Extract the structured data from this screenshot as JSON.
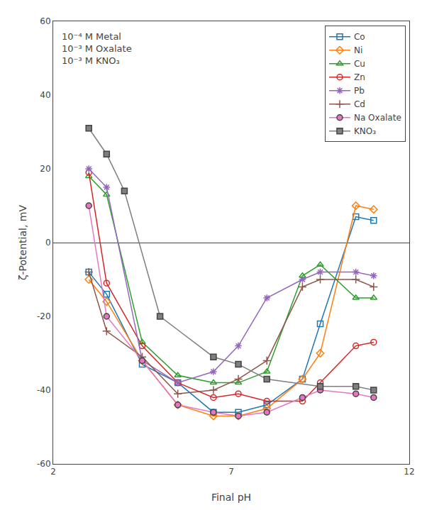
{
  "chart_data": {
    "type": "line",
    "xlabel": "Final pH",
    "ylabel": "ζ-Potential, mV",
    "xlim": [
      2,
      12
    ],
    "ylim": [
      -60,
      60
    ],
    "xticks": [
      2,
      7,
      12
    ],
    "yticks": [
      -60,
      -40,
      -20,
      0,
      20,
      40,
      60
    ],
    "grid": false,
    "legend": "upper right",
    "annotations": [
      "10⁻⁴ M Metal",
      "10⁻³ M Oxalate",
      "10⁻³ M KNO₃"
    ],
    "series": [
      {
        "name": "Co",
        "marker": "square-open",
        "x": [
          3.0,
          3.5,
          4.5,
          5.5,
          6.5,
          7.2,
          8.0,
          9.0,
          9.5,
          10.5,
          11.0
        ],
        "values": [
          -8,
          -14,
          -33,
          -38,
          -46,
          -46,
          -44,
          -37,
          -22,
          7,
          6
        ]
      },
      {
        "name": "Ni",
        "marker": "diamond-open",
        "x": [
          3.0,
          3.5,
          4.5,
          5.5,
          6.5,
          7.2,
          8.0,
          9.0,
          9.5,
          10.5,
          11.0
        ],
        "values": [
          -10,
          -16,
          -32,
          -44,
          -47,
          -47,
          -45,
          -37,
          -30,
          10,
          9
        ]
      },
      {
        "name": "Cu",
        "marker": "triangle-up-open",
        "x": [
          3.0,
          3.5,
          4.5,
          5.5,
          6.5,
          7.2,
          8.0,
          9.0,
          9.5,
          10.5,
          11.0
        ],
        "values": [
          18,
          13,
          -27,
          -36,
          -38,
          -38,
          -35,
          -9,
          -6,
          -15,
          -15
        ]
      },
      {
        "name": "Zn",
        "marker": "circle-open",
        "x": [
          3.0,
          3.5,
          4.5,
          5.5,
          6.5,
          7.2,
          8.0,
          9.0,
          9.5,
          10.5,
          11.0
        ],
        "values": [
          19,
          -11,
          -28,
          -38,
          -42,
          -41,
          -43,
          -43,
          -38,
          -28,
          -27
        ]
      },
      {
        "name": "Pb",
        "marker": "asterisk-open",
        "x": [
          3.0,
          3.5,
          4.5,
          5.5,
          6.5,
          7.2,
          8.0,
          9.0,
          9.5,
          10.5,
          11.0
        ],
        "values": [
          20,
          15,
          -32,
          -38,
          -35,
          -28,
          -15,
          -10,
          -8,
          -8,
          -9
        ]
      },
      {
        "name": "Cd",
        "marker": "cross-thin-open",
        "x": [
          3.0,
          3.5,
          4.5,
          5.5,
          6.5,
          7.2,
          8.0,
          9.0,
          9.5,
          10.5,
          11.0
        ],
        "values": [
          -8,
          -24,
          -31,
          -41,
          -40,
          -37,
          -32,
          -12,
          -10,
          -10,
          -12
        ]
      },
      {
        "name": "Na Oxalate",
        "marker": "circle",
        "x": [
          3.0,
          3.5,
          4.5,
          5.5,
          6.5,
          7.2,
          8.0,
          9.0,
          9.5,
          10.5,
          11.0
        ],
        "values": [
          10,
          -20,
          -32,
          -44,
          -46,
          -47,
          -46,
          -42,
          -40,
          -41,
          -42
        ]
      },
      {
        "name": "KNO₃",
        "marker": "square",
        "x": [
          3.0,
          3.5,
          4.0,
          5.0,
          6.5,
          7.2,
          8.0,
          9.5,
          10.5,
          11.0
        ],
        "values": [
          31,
          24,
          14,
          -20,
          -31,
          -33,
          -37,
          -39,
          -39,
          -40
        ]
      }
    ]
  }
}
